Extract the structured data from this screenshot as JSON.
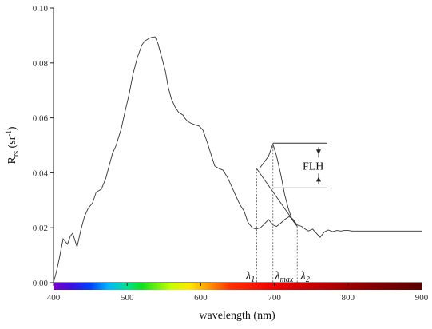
{
  "chart_data": {
    "type": "line",
    "title": "",
    "xlabel": "wavelength (nm)",
    "ylabel_main": "R",
    "ylabel_sub": "rs",
    "ylabel_unit_open": " (sr",
    "ylabel_unit_sup": "-1",
    "ylabel_unit_close": ")",
    "xlim": [
      400,
      900
    ],
    "ylim": [
      0,
      0.1
    ],
    "xticks": [
      400,
      500,
      600,
      700,
      800,
      900
    ],
    "xtick_labels": [
      "400",
      "500",
      "600",
      "700",
      "800",
      "900"
    ],
    "yticks": [
      0,
      0.02,
      0.04,
      0.06,
      0.08,
      0.1
    ],
    "ytick_labels": [
      "0.00",
      "0.02",
      "0.04",
      "0.06",
      "0.08",
      "0.10"
    ],
    "grid": false,
    "colorbar_range_nm": [
      400,
      900
    ],
    "series": [
      {
        "x": [
          400,
          404,
          408,
          413,
          419,
          423,
          426,
          432,
          437,
          442,
          447,
          453,
          458,
          465,
          471,
          476,
          480,
          485,
          492,
          497,
          503,
          508,
          514,
          520,
          524,
          529,
          533,
          538,
          542,
          547,
          552,
          556,
          560,
          565,
          570,
          576,
          578,
          582,
          587,
          592,
          598,
          603,
          609,
          613,
          619,
          625,
          630,
          636,
          642,
          647,
          653,
          659,
          664,
          670,
          675,
          681,
          685,
          692,
          698,
          703,
          708,
          714,
          720,
          725,
          731,
          737,
          742,
          746,
          752,
          757,
          762,
          768,
          773,
          779,
          785,
          790,
          795,
          800,
          806,
          811,
          817,
          822,
          828,
          833,
          839,
          844,
          850,
          856,
          861,
          867,
          872,
          878,
          884,
          889,
          895,
          900
        ],
        "y": [
          0.0,
          0.004,
          0.009,
          0.016,
          0.014,
          0.017,
          0.018,
          0.013,
          0.019,
          0.024,
          0.027,
          0.029,
          0.033,
          0.034,
          0.038,
          0.043,
          0.047,
          0.05,
          0.056,
          0.062,
          0.069,
          0.076,
          0.082,
          0.0865,
          0.088,
          0.0888,
          0.0893,
          0.0895,
          0.087,
          0.082,
          0.077,
          0.071,
          0.067,
          0.064,
          0.062,
          0.061,
          0.06,
          0.0588,
          0.058,
          0.0575,
          0.057,
          0.0555,
          0.051,
          0.0475,
          0.0425,
          0.0415,
          0.041,
          0.0385,
          0.035,
          0.032,
          0.0285,
          0.026,
          0.022,
          0.02,
          0.0195,
          0.02,
          0.021,
          0.023,
          0.021,
          0.0205,
          0.0215,
          0.023,
          0.024,
          0.0232,
          0.021,
          0.0205,
          0.0195,
          0.0188,
          0.0195,
          0.018,
          0.0165,
          0.0185,
          0.0192,
          0.0186,
          0.019,
          0.0188,
          0.019,
          0.019,
          0.0188,
          0.0188,
          0.0188,
          0.0188,
          0.0188,
          0.0188,
          0.0188,
          0.0188,
          0.0188,
          0.0188,
          0.0188,
          0.0188,
          0.0188,
          0.0188,
          0.0188,
          0.0188,
          0.0188,
          0.0188
        ]
      }
    ],
    "annotations": {
      "fluorescence_peak": {
        "x": [
          681,
          692,
          698,
          703,
          709,
          714,
          719,
          724,
          731
        ],
        "y": [
          0.042,
          0.046,
          0.0505,
          0.046,
          0.039,
          0.032,
          0.027,
          0.023,
          0.0205
        ]
      },
      "baseline_line": {
        "x1": 676,
        "y1": 0.0415,
        "x2": 731,
        "y2": 0.0205
      },
      "lambda_1_nm": 676,
      "lambda_max_nm": 698,
      "lambda_2_nm": 731,
      "flh_top_y": 0.0508,
      "flh_bottom_y": 0.0345,
      "flh_bracket_right_nm": 772,
      "flh_label": "FLH",
      "lambda_symbol": "λ",
      "lambda_1_sub": "1",
      "lambda_max_sub": "max",
      "lambda_2_sub": "2"
    }
  }
}
